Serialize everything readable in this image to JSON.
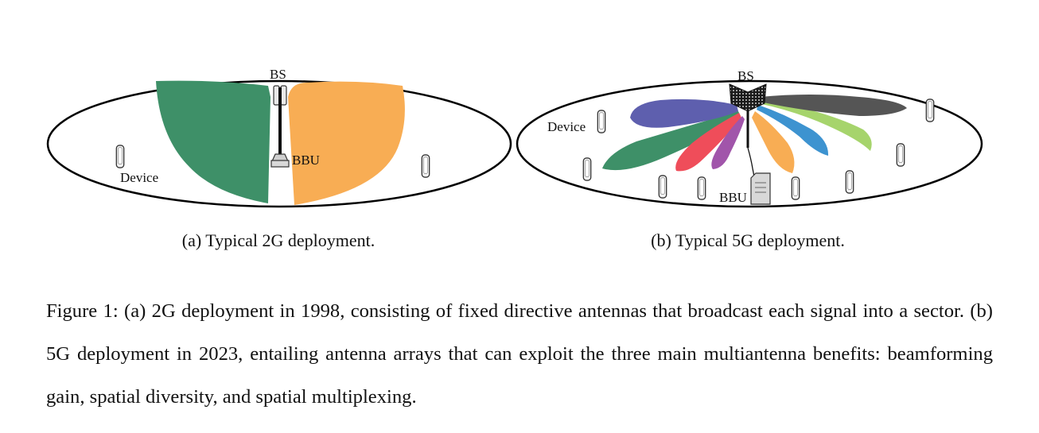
{
  "panel_a": {
    "bs_label": "BS",
    "bbu_label": "BBU",
    "device_label": "Device",
    "subcaption": "(a) Typical 2G deployment.",
    "colors": {
      "left_sector": "#3e9068",
      "right_sector": "#f8ad54"
    }
  },
  "panel_b": {
    "bs_label": "BS",
    "bbu_label": "BBU",
    "device_label": "Device",
    "subcaption": "(b) Typical 5G deployment.",
    "beam_colors": [
      "#3e9068",
      "#5e5fae",
      "#ef4d5a",
      "#a155aa",
      "#f8ad54",
      "#3d93d0",
      "#a6d46c",
      "#555555"
    ]
  },
  "caption": "Figure 1: (a) 2G deployment in 1998, consisting of fixed directive antennas that broadcast each signal into a sector. (b) 5G deployment in 2023, entailing antenna arrays that can exploit the three main multiantenna benefits: beamforming gain, spatial diversity, and spatial multiplexing."
}
